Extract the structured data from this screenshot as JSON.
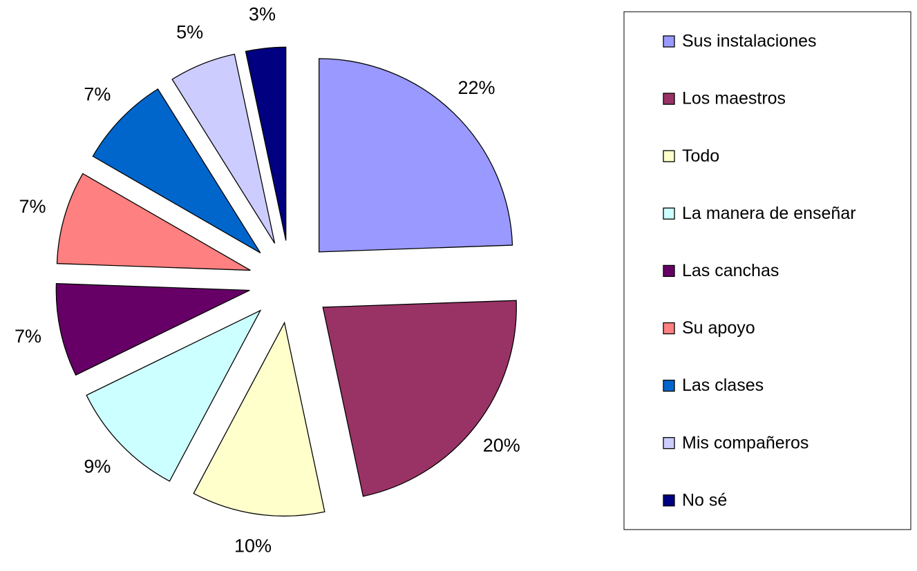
{
  "chart_data": {
    "type": "pie",
    "categories": [
      "Sus instalaciones",
      "Los maestros",
      "Todo",
      "La manera de enseñar",
      "Las canchas",
      "Su apoyo",
      "Las clases",
      "Mis compañeros",
      "No sé"
    ],
    "values": [
      22,
      20,
      10,
      9,
      7,
      7,
      7,
      5,
      3
    ],
    "value_labels": [
      "22%",
      "20%",
      "10%",
      "9%",
      "7%",
      "7%",
      "7%",
      "5%",
      "3%"
    ],
    "colors": [
      "#9999ff",
      "#993366",
      "#ffffcc",
      "#ccffff",
      "#660066",
      "#ff8080",
      "#0066cc",
      "#ccccff",
      "#000080"
    ],
    "legend": "right"
  }
}
